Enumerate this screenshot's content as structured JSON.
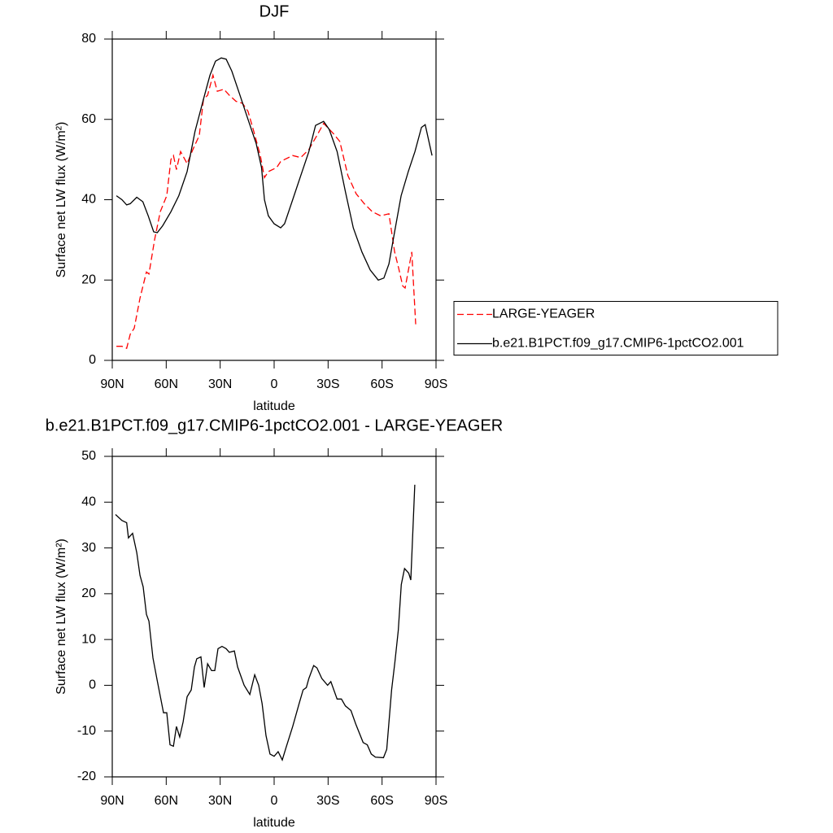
{
  "chart_data": [
    {
      "type": "line",
      "title": "DJF",
      "xlabel": "latitude",
      "ylabel": "Surface net LW flux (W/m²)",
      "xlim": [
        90,
        -90
      ],
      "xticks": [
        {
          "value": 90,
          "label": "90N"
        },
        {
          "value": 60,
          "label": "60N"
        },
        {
          "value": 30,
          "label": "30N"
        },
        0,
        {
          "value": -30,
          "label": "30S"
        },
        {
          "value": -60,
          "label": "60S"
        },
        {
          "value": -90,
          "label": "90S"
        }
      ],
      "ylim": [
        0,
        80
      ],
      "yticks": [
        0,
        20,
        40,
        60,
        80
      ],
      "legend": "right",
      "series": [
        {
          "name": "LARGE-YEAGER",
          "color": "#ff0000",
          "style": "dashed",
          "x": [
            87.7,
            84.6,
            82,
            80,
            77.8,
            74.6,
            71,
            69.6,
            66.5,
            63.3,
            59.7,
            57.4,
            56,
            54.3,
            52,
            48.4,
            45.2,
            41.6,
            39.3,
            37,
            34,
            31.6,
            28,
            24.9,
            21.2,
            17.6,
            14.5,
            11.3,
            7.7,
            5.4,
            3.2,
            -1.4,
            -3.6,
            -5.8,
            -10.3,
            -14.8,
            -19.3,
            -23.8,
            -27.5,
            -32.9,
            -36.5,
            -41,
            -45.6,
            -50.1,
            -54.6,
            -59.2,
            -63.8,
            -67,
            -69.2,
            -71.5,
            -72.8,
            -76.5,
            -78.7
          ],
          "values": [
            3.5,
            3.5,
            3,
            6.5,
            8,
            15.5,
            22,
            21.5,
            30,
            37,
            41,
            50,
            51,
            47.5,
            52,
            49,
            52.5,
            56,
            65,
            66,
            71,
            67,
            67.5,
            66,
            64.5,
            64,
            62,
            57,
            51,
            45.5,
            47,
            48,
            49.5,
            50,
            51,
            50.5,
            52.5,
            56,
            59,
            56.5,
            54.5,
            46,
            41.5,
            39,
            37,
            36,
            36.5,
            27,
            23,
            18.5,
            18,
            27,
            9
          ]
        },
        {
          "name": "b.e21.B1PCT.f09_g17.CMIP6-1pctCO2.001",
          "color": "#000000",
          "style": "solid",
          "x": [
            87.7,
            84.6,
            82,
            80,
            76.4,
            73,
            70,
            67,
            65,
            62,
            57.4,
            53,
            48.4,
            44,
            39.3,
            35.7,
            32.6,
            29.4,
            26.7,
            23.5,
            19,
            14.5,
            10,
            7,
            5.4,
            3.2,
            0,
            -3.6,
            -5.8,
            -10.3,
            -14.8,
            -19.3,
            -23,
            -27.5,
            -30.6,
            -35,
            -39.6,
            -44,
            -48.8,
            -53.4,
            -57.9,
            -61,
            -63.8,
            -67,
            -70.6,
            -74.6,
            -78.3,
            -81.9,
            -84,
            -87.8
          ],
          "values": [
            41,
            40,
            38.7,
            39,
            40.6,
            39.5,
            36,
            32,
            31.8,
            33.5,
            37,
            41,
            47,
            57,
            65,
            71,
            74.5,
            75.3,
            75,
            72,
            66,
            60,
            54,
            48,
            40,
            36,
            34,
            33,
            34,
            40,
            46,
            52,
            58.5,
            59.5,
            57.5,
            52,
            42,
            33,
            27,
            22.5,
            20,
            20.5,
            24,
            32,
            41,
            47,
            52,
            58,
            58.7,
            51
          ]
        }
      ]
    },
    {
      "type": "line",
      "title": "b.e21.B1PCT.f09_g17.CMIP6-1pctCO2.001 - LARGE-YEAGER",
      "xlabel": "latitude",
      "ylabel": "Surface net LW flux (W/m²)",
      "xlim": [
        90,
        -90
      ],
      "xticks": [
        {
          "value": 90,
          "label": "90N"
        },
        {
          "value": 60,
          "label": "60N"
        },
        {
          "value": 30,
          "label": "30N"
        },
        0,
        {
          "value": -30,
          "label": "30S"
        },
        {
          "value": -60,
          "label": "60S"
        },
        {
          "value": -90,
          "label": "90S"
        }
      ],
      "ylim": [
        -20,
        50
      ],
      "yticks": [
        -20,
        -10,
        0,
        10,
        20,
        30,
        40,
        50
      ],
      "color": "#000000",
      "x": [
        88.2,
        84.6,
        82,
        81,
        78.7,
        76.4,
        74.6,
        72.8,
        71,
        69.6,
        67.4,
        65,
        63,
        61.5,
        59.7,
        57.9,
        56,
        54.3,
        52.5,
        50.6,
        48.4,
        46.1,
        44.3,
        43,
        40.7,
        38.9,
        37,
        34.8,
        33,
        31.2,
        29,
        26.7,
        24.9,
        22.1,
        20.3,
        16.7,
        13.5,
        10.8,
        8.6,
        6.7,
        4.5,
        2.3,
        0,
        -2.2,
        -4.5,
        -6.7,
        -10.3,
        -13.9,
        -16.1,
        -17.9,
        -19.3,
        -22,
        -23.8,
        -26.5,
        -29.7,
        -31.5,
        -35,
        -37.4,
        -39.6,
        -42.7,
        -45.4,
        -49.5,
        -51.8,
        -54,
        -56.3,
        -60.8,
        -62.6,
        -65.3,
        -67.1,
        -69,
        -70.7,
        -72.5,
        -74.8,
        -76,
        -78.2
      ],
      "values": [
        37.3,
        36,
        35.5,
        32.2,
        33.2,
        29,
        24,
        21.5,
        15.5,
        14,
        6,
        1,
        -3,
        -6,
        -6,
        -13,
        -13.3,
        -9,
        -11.3,
        -8,
        -2.5,
        -1,
        4,
        5.8,
        6.2,
        -0.5,
        4.7,
        3.2,
        3.2,
        8,
        8.5,
        8,
        7.2,
        7.5,
        4,
        0,
        -2,
        2.3,
        0,
        -4,
        -11,
        -15,
        -15.5,
        -14.5,
        -16.3,
        -13.5,
        -9,
        -4,
        -1,
        -0.5,
        1.5,
        4.3,
        3.8,
        1.5,
        0,
        0.8,
        -3,
        -3,
        -4.5,
        -5.5,
        -8.5,
        -12.5,
        -13,
        -15,
        -15.7,
        -15.8,
        -14,
        -1,
        5,
        12,
        22,
        25.5,
        24.5,
        23,
        43.8
      ]
    }
  ]
}
